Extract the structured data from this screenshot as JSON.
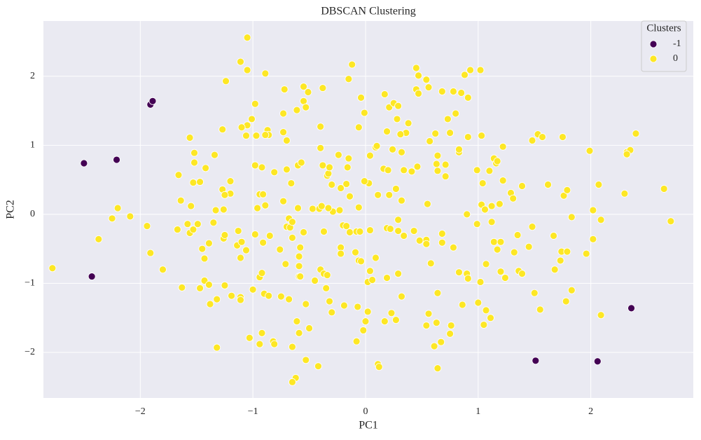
{
  "chart_data": {
    "type": "scatter",
    "title": "DBSCAN Clustering",
    "x_label": "PC1",
    "y_label": "PC2",
    "xlim": [
      -2.86,
      2.91
    ],
    "ylim": [
      -2.66,
      2.8
    ],
    "xticks": [
      {
        "value": -2,
        "label": "−2"
      },
      {
        "value": -1,
        "label": "−1"
      },
      0,
      1,
      2
    ],
    "yticks": [
      {
        "value": -2,
        "label": "−2"
      },
      {
        "value": -1,
        "label": "−1"
      },
      0,
      1,
      2
    ],
    "grid": true,
    "legend_title": "Clusters",
    "legend": "upper right",
    "series": [
      {
        "name": "-1",
        "color": "#440154",
        "x": [
          -1.91,
          -1.89,
          -2.5,
          -2.21,
          -2.43,
          2.36,
          1.51,
          2.06
        ],
        "y": [
          1.59,
          1.64,
          0.74,
          0.79,
          -0.9,
          -1.36,
          -2.12,
          -2.13
        ]
      },
      {
        "name": "0",
        "color": "#fde725",
        "x": [
          -1.05,
          -1.11,
          -1.05,
          -0.89,
          -1.24,
          -0.12,
          -0.15,
          -0.98,
          -0.72,
          -0.55,
          -0.51,
          -0.38,
          -0.55,
          -0.53,
          -0.61,
          -0.73,
          -0.04,
          -0.01,
          0.17,
          0.21,
          0.25,
          0.29,
          0.28,
          0.38,
          0.36,
          0.19,
          0.31,
          -0.06,
          -0.4,
          -0.24,
          -0.4,
          0.45,
          0.47,
          0.54,
          0.56,
          0.45,
          0.47,
          0.88,
          0.93,
          1.02,
          0.68,
          0.78,
          0.85,
          0.91,
          0.8,
          0.73,
          0.62,
          0.75,
          1.03,
          -1.01,
          -1.05,
          -1.1,
          -1.06,
          -0.97,
          -0.87,
          -0.86,
          -0.89,
          -0.73,
          -0.7,
          -1.27,
          -1.56,
          -1.52,
          -1.34,
          -1.52,
          -1.42,
          -1.66,
          -1.53,
          -1.47,
          -1.27,
          -1.2,
          -1.2,
          -1.25,
          -1.64,
          -1.55,
          -1.33,
          -1.26,
          -2.2,
          -2.25,
          -2.09,
          -2.37,
          -2.78,
          -1.94,
          -1.91,
          -1.8,
          -1.67,
          -1.58,
          -1.56,
          -1.53,
          -1.49,
          -1.35,
          -1.26,
          -1.25,
          -1.39,
          -1.45,
          -1.43,
          -1.63,
          -1.43,
          -1.47,
          -1.39,
          -1.38,
          -1.32,
          -1.25,
          -1.19,
          -1.11,
          -1.11,
          -1.32,
          -1.13,
          -1.14,
          -1.1,
          -1.06,
          -1.11,
          -1.0,
          -0.94,
          -0.92,
          -0.9,
          -0.86,
          -1.03,
          -0.94,
          -0.92,
          -0.82,
          -0.81,
          -0.65,
          -0.68,
          -0.75,
          -0.98,
          -0.91,
          -0.85,
          -0.96,
          -0.94,
          -0.91,
          -0.89,
          -0.98,
          -0.92,
          -0.81,
          -0.7,
          -0.6,
          -0.57,
          -0.66,
          -0.73,
          -0.6,
          -0.47,
          -0.41,
          -0.39,
          -0.29,
          -0.23,
          -0.33,
          -0.7,
          -0.67,
          -0.68,
          -0.65,
          -0.65,
          -0.76,
          -0.55,
          -0.37,
          -0.58,
          -0.59,
          -0.71,
          -0.59,
          -0.59,
          -0.58,
          -0.45,
          -0.4,
          -0.37,
          -0.34,
          -0.35,
          -0.32,
          -0.19,
          -0.3,
          -0.53,
          -0.61,
          -0.59,
          -0.5,
          -0.53,
          -0.62,
          -0.65,
          -0.42,
          -0.2,
          -0.17,
          -0.14,
          -0.08,
          -0.05,
          -0.22,
          -0.22,
          -0.09,
          -0.06,
          -0.04,
          0.09,
          0.04,
          0.02,
          0.06,
          -0.07,
          0.02,
          0.0,
          -0.02,
          -0.08,
          0.11,
          0.12,
          0.17,
          0.23,
          0.27,
          0.32,
          0.29,
          0.19,
          0.04,
          0.19,
          0.22,
          0.29,
          0.34,
          0.29,
          0.32,
          0.21,
          0.27,
          0.11,
          0.03,
          -0.01,
          -0.06,
          -0.14,
          -0.17,
          -0.22,
          -0.3,
          -0.34,
          -0.33,
          -0.32,
          -0.38,
          -0.16,
          -0.15,
          0.04,
          0.09,
          0.1,
          0.16,
          0.2,
          0.24,
          0.34,
          0.41,
          0.46,
          0.32,
          0.57,
          0.64,
          0.63,
          0.64,
          0.71,
          0.71,
          0.83,
          0.83,
          0.99,
          1.1,
          1.04,
          1.14,
          1.16,
          1.17,
          1.22,
          1.22,
          1.29,
          1.31,
          1.39,
          1.48,
          1.53,
          1.62,
          1.76,
          1.79,
          1.57,
          1.75,
          1.99,
          2.32,
          2.35,
          2.4,
          2.32,
          2.65,
          2.3,
          2.07,
          2.02,
          2.09,
          2.02,
          1.96,
          1.83,
          1.67,
          1.74,
          1.79,
          1.73,
          1.68,
          1.48,
          1.45,
          1.35,
          1.32,
          1.36,
          1.39,
          1.5,
          1.55,
          1.78,
          1.83,
          2.09,
          2.71,
          1.03,
          1.06,
          1.12,
          1.19,
          1.12,
          1.14,
          1.17,
          1.2,
          1.2,
          1.24,
          1.07,
          1.02,
          1.0,
          1.07,
          1.11,
          0.86,
          1.05,
          0.9,
          0.91,
          0.83,
          0.78,
          0.68,
          0.68,
          0.54,
          0.54,
          0.48,
          0.43,
          0.55,
          0.64,
          0.56,
          0.54,
          0.63,
          0.76,
          0.75,
          0.67,
          0.61,
          0.64,
          0.9,
          0.58,
          0.91,
          0.99
        ],
        "y": [
          2.56,
          2.21,
          2.09,
          2.04,
          1.93,
          2.17,
          1.96,
          1.6,
          1.81,
          1.85,
          1.77,
          1.83,
          1.64,
          1.55,
          1.51,
          1.46,
          1.69,
          1.47,
          1.74,
          1.55,
          1.61,
          1.57,
          1.38,
          1.32,
          1.18,
          1.2,
          1.16,
          1.26,
          1.27,
          0.86,
          0.96,
          2.12,
          2.01,
          1.95,
          1.84,
          1.81,
          1.75,
          2.02,
          2.09,
          2.09,
          1.78,
          1.78,
          1.76,
          1.69,
          1.46,
          1.38,
          1.17,
          1.18,
          1.14,
          1.38,
          1.29,
          1.26,
          1.14,
          1.14,
          1.22,
          1.15,
          1.15,
          1.19,
          1.07,
          1.23,
          1.11,
          0.89,
          0.86,
          0.75,
          0.67,
          0.57,
          0.46,
          0.47,
          0.36,
          0.48,
          0.3,
          0.28,
          0.2,
          0.12,
          0.06,
          0.07,
          0.09,
          -0.06,
          -0.03,
          -0.36,
          -0.78,
          -0.17,
          -0.56,
          -0.8,
          -0.22,
          -0.14,
          -0.27,
          -0.22,
          -0.14,
          -0.12,
          -0.35,
          -0.3,
          -0.42,
          -0.5,
          -0.64,
          -1.06,
          -0.96,
          -1.07,
          -1.02,
          -1.3,
          -1.23,
          -1.03,
          -1.18,
          -1.2,
          -1.24,
          -1.93,
          -0.24,
          -0.45,
          -0.4,
          -0.52,
          -0.63,
          -1.09,
          -0.91,
          -0.85,
          -1.15,
          -1.18,
          -1.79,
          -1.88,
          -1.72,
          -1.84,
          -1.88,
          -1.92,
          -1.23,
          -1.19,
          -0.29,
          -0.41,
          -0.31,
          0.09,
          0.29,
          0.29,
          0.13,
          0.71,
          0.68,
          0.61,
          0.65,
          0.71,
          0.75,
          0.45,
          0.19,
          0.09,
          0.08,
          0.08,
          0.12,
          0.04,
          0.06,
          0.09,
          -0.18,
          -0.19,
          -0.06,
          -0.11,
          -0.34,
          -0.51,
          -0.26,
          -0.25,
          -0.48,
          -0.61,
          -0.72,
          -0.75,
          -0.9,
          -0.9,
          -0.96,
          -0.8,
          -0.86,
          -0.88,
          -1.07,
          -1.26,
          -1.32,
          -1.42,
          -1.3,
          -1.55,
          -1.72,
          -1.65,
          -2.11,
          -2.37,
          -2.43,
          -2.2,
          -0.16,
          -0.17,
          -0.26,
          -0.25,
          -0.25,
          -0.48,
          -0.57,
          -0.55,
          -0.67,
          -0.68,
          -0.63,
          -0.82,
          -0.98,
          -0.95,
          -1.34,
          -1.41,
          -1.55,
          -1.68,
          -1.84,
          -2.17,
          -2.21,
          -1.55,
          -1.43,
          -1.53,
          -1.19,
          -0.86,
          -0.92,
          -0.23,
          -0.2,
          -0.21,
          -0.24,
          -0.31,
          -0.08,
          0.2,
          0.28,
          0.37,
          0.28,
          0.45,
          0.48,
          0.1,
          0.26,
          0.44,
          0.38,
          0.43,
          0.56,
          0.59,
          0.68,
          0.71,
          0.68,
          0.81,
          0.85,
          0.97,
          0.99,
          0.66,
          0.64,
          0.94,
          0.64,
          0.62,
          0.69,
          0.9,
          1.06,
          0.85,
          0.73,
          0.63,
          0.72,
          0.55,
          0.9,
          0.94,
          0.64,
          0.63,
          0.45,
          0.81,
          0.74,
          0.77,
          0.98,
          0.49,
          0.31,
          0.23,
          0.41,
          1.07,
          1.16,
          0.43,
          0.27,
          0.35,
          1.12,
          1.12,
          0.92,
          0.9,
          0.93,
          1.17,
          0.87,
          0.37,
          0.3,
          0.43,
          0.06,
          -0.08,
          -0.36,
          -0.57,
          -0.04,
          -0.31,
          -0.54,
          -0.54,
          -0.67,
          -0.8,
          -0.18,
          -0.47,
          -0.3,
          -0.55,
          -0.82,
          -0.86,
          -1.14,
          -1.38,
          -1.26,
          -1.1,
          -1.46,
          -0.1,
          0.14,
          0.07,
          0.12,
          0.15,
          -0.11,
          -0.4,
          -0.51,
          -0.4,
          -0.83,
          -0.92,
          -0.72,
          -0.98,
          -1.28,
          -1.39,
          -1.5,
          -1.31,
          -1.6,
          -0.86,
          -0.93,
          -0.84,
          -0.48,
          -0.28,
          -0.41,
          -0.37,
          -0.43,
          -0.38,
          -0.24,
          0.15,
          -1.14,
          -1.44,
          -1.61,
          -1.57,
          -1.61,
          -1.73,
          -1.85,
          -1.91,
          -2.23,
          0.0,
          -0.71,
          1.12,
          -0.14
        ]
      }
    ]
  }
}
